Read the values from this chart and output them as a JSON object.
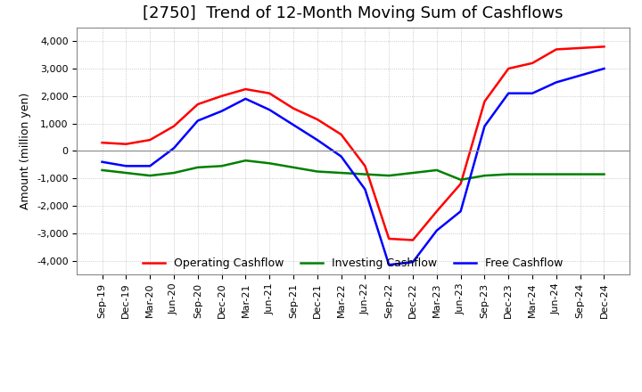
{
  "title": "[2750]  Trend of 12-Month Moving Sum of Cashflows",
  "ylabel": "Amount (million yen)",
  "ylim": [
    -4500,
    4500
  ],
  "yticks": [
    -4000,
    -3000,
    -2000,
    -1000,
    0,
    1000,
    2000,
    3000,
    4000
  ],
  "x_labels": [
    "Sep-19",
    "Dec-19",
    "Mar-20",
    "Jun-20",
    "Sep-20",
    "Dec-20",
    "Mar-21",
    "Jun-21",
    "Sep-21",
    "Dec-21",
    "Mar-22",
    "Jun-22",
    "Sep-22",
    "Dec-22",
    "Mar-23",
    "Jun-23",
    "Sep-23",
    "Dec-23",
    "Mar-24",
    "Jun-24",
    "Sep-24",
    "Dec-24"
  ],
  "operating": [
    300,
    250,
    400,
    900,
    1700,
    2000,
    2250,
    2100,
    1550,
    1150,
    600,
    -550,
    -3200,
    -3250,
    -2200,
    -1200,
    1800,
    3000,
    3200,
    3700,
    3750,
    3800
  ],
  "investing": [
    -700,
    -800,
    -900,
    -800,
    -600,
    -550,
    -350,
    -450,
    -600,
    -750,
    -800,
    -850,
    -900,
    -800,
    -700,
    -1050,
    -900,
    -850,
    -850,
    -850,
    -850,
    -850
  ],
  "free": [
    -400,
    -550,
    -550,
    100,
    1100,
    1450,
    1900,
    1500,
    950,
    400,
    -200,
    -1400,
    -4150,
    -4050,
    -2900,
    -2200,
    900,
    2100,
    2100,
    2500,
    2750,
    3000
  ],
  "operating_color": "#ff0000",
  "investing_color": "#008000",
  "free_color": "#0000ff",
  "background_color": "#ffffff",
  "grid_color": "#aaaaaa",
  "title_fontsize": 13,
  "axis_fontsize": 9,
  "tick_fontsize": 8
}
